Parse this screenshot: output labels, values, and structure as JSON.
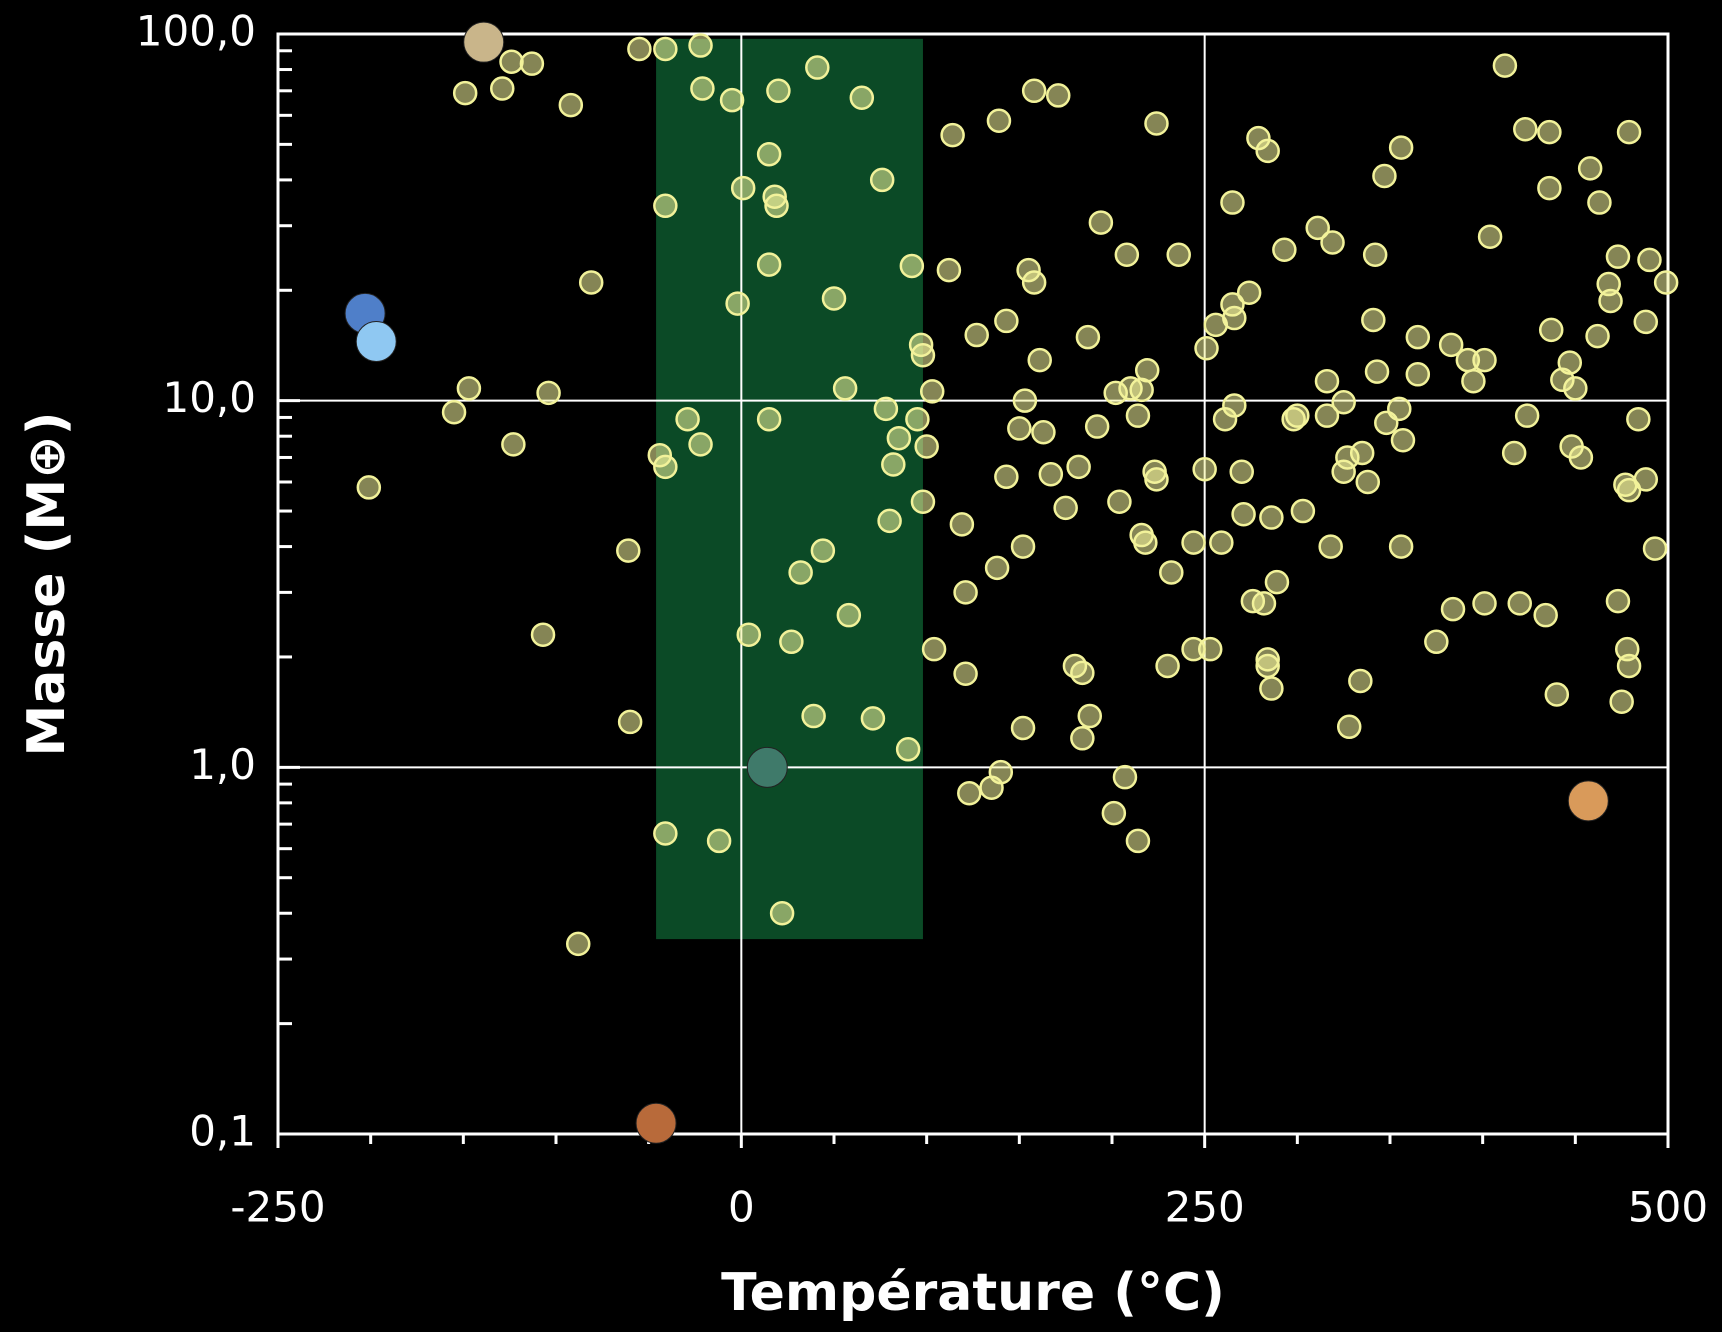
{
  "chart_data": {
    "type": "scatter",
    "x_label": "Température (°C)",
    "y_label": "Masse (M⊕)",
    "log_y": true,
    "grid": true,
    "xlim": [
      -250,
      500
    ],
    "ylim": [
      0.1,
      100
    ],
    "xticks": [
      -250,
      0,
      250,
      500
    ],
    "xminorticks": [
      -200,
      -150,
      -100,
      -50,
      50,
      100,
      150,
      200,
      300,
      350,
      400,
      450
    ],
    "yticks": [
      {
        "value": 0.1,
        "label": "0,1"
      },
      {
        "value": 1,
        "label": "1,0"
      },
      {
        "value": 10,
        "label": "10,0"
      },
      {
        "value": 100,
        "label": "100,0"
      }
    ],
    "yminorticks": [
      0.2,
      0.3,
      0.4,
      0.5,
      0.6,
      0.7,
      0.8,
      0.9,
      2,
      3,
      4,
      5,
      6,
      7,
      8,
      9,
      20,
      30,
      40,
      50,
      60,
      70,
      80,
      90
    ],
    "highlight_region": {
      "xlim": [
        -46,
        98
      ],
      "ylim": [
        0.34,
        97
      ],
      "color": "#0b4a26"
    },
    "series": [
      {
        "color": "#f2f29a",
        "x": [
          -149,
          -124,
          -113,
          -129,
          -92,
          -55,
          -41,
          -22,
          -81,
          -147,
          -155,
          -123,
          -104,
          -201,
          -61,
          -107,
          -60,
          -88,
          -21,
          -5,
          20,
          41,
          65,
          15,
          1,
          18,
          19,
          -41,
          76,
          15,
          -2,
          50,
          92,
          97,
          98,
          56,
          78,
          95,
          15,
          -29,
          -22,
          -44,
          -41,
          85,
          82,
          100,
          98,
          80,
          44,
          32,
          58,
          4,
          27,
          39,
          71,
          90,
          -41,
          -12,
          22,
          103,
          104,
          114,
          112,
          119,
          121,
          121,
          123,
          127,
          135,
          139,
          138,
          140,
          143,
          143,
          150,
          152,
          152,
          153,
          155,
          158,
          158,
          161,
          163,
          167,
          171,
          175,
          180,
          182,
          184,
          184,
          187,
          188,
          192,
          194,
          201,
          202,
          204,
          207,
          208,
          210,
          214,
          216,
          214,
          216,
          218,
          219,
          224,
          223,
          224,
          232,
          236,
          230,
          244,
          244,
          250,
          251,
          253,
          259,
          256,
          261,
          266,
          265,
          265,
          266,
          270,
          271,
          274,
          276,
          279,
          282,
          284,
          284,
          284,
          286,
          286,
          289,
          293,
          298,
          300,
          303,
          311,
          316,
          316,
          318,
          319,
          325,
          325,
          327,
          328,
          334,
          335,
          338,
          342,
          341,
          343,
          348,
          347,
          355,
          356,
          357,
          356,
          365,
          365,
          375,
          383,
          384,
          392,
          395,
          401,
          401,
          404,
          412,
          417,
          423,
          420,
          424,
          434,
          436,
          436,
          437,
          440,
          443,
          448,
          447,
          450,
          453,
          458,
          462,
          463,
          468,
          469,
          473,
          473,
          475,
          477,
          479,
          479,
          478,
          479,
          484,
          488,
          488,
          490,
          493,
          499
        ],
        "y": [
          69,
          84,
          83,
          71,
          64,
          91,
          91,
          93,
          21,
          10.8,
          9.3,
          7.6,
          10.5,
          5.8,
          3.9,
          2.3,
          1.33,
          0.33,
          71,
          66,
          70,
          81,
          67,
          47,
          38,
          36,
          34,
          34,
          40,
          23.5,
          18.4,
          19,
          23.3,
          14.2,
          13.3,
          10.8,
          9.5,
          8.9,
          8.9,
          8.9,
          7.6,
          7.1,
          6.6,
          7.9,
          6.7,
          7.5,
          5.3,
          4.7,
          3.9,
          3.4,
          2.6,
          2.3,
          2.2,
          1.38,
          1.36,
          1.12,
          0.66,
          0.63,
          0.4,
          10.6,
          2.1,
          53,
          22.7,
          4.6,
          3,
          1.8,
          0.85,
          15.1,
          0.88,
          58,
          3.5,
          0.97,
          16.5,
          6.2,
          8.4,
          4,
          1.28,
          10,
          22.7,
          21,
          70,
          12.9,
          8.2,
          6.3,
          68,
          5.1,
          1.89,
          6.6,
          1.81,
          1.2,
          14.9,
          1.38,
          8.5,
          30.6,
          0.75,
          10.5,
          5.3,
          0.94,
          25,
          10.8,
          9.1,
          10.7,
          0.63,
          4.3,
          4.1,
          12.1,
          57,
          6.4,
          6.1,
          3.4,
          25,
          1.89,
          4.1,
          2.1,
          6.5,
          13.9,
          2.1,
          4.1,
          16.1,
          8.9,
          9.7,
          34.7,
          18.3,
          16.8,
          6.4,
          4.9,
          19.7,
          2.84,
          52,
          2.8,
          48,
          1.97,
          1.89,
          1.64,
          4.8,
          3.2,
          25.8,
          8.9,
          9.1,
          5,
          29.6,
          11.3,
          9.1,
          4,
          27,
          9.9,
          6.4,
          7,
          1.29,
          1.72,
          7.2,
          6,
          25,
          16.6,
          12,
          8.7,
          41,
          9.5,
          49,
          7.8,
          4,
          14.9,
          11.8,
          2.2,
          14.2,
          2.7,
          12.9,
          11.3,
          12.9,
          2.8,
          28,
          82,
          7.2,
          55,
          2.8,
          9.1,
          2.6,
          54,
          38,
          15.6,
          1.58,
          11.4,
          7.5,
          12.7,
          10.8,
          7,
          43,
          15,
          34.7,
          20.8,
          18.7,
          24.7,
          2.84,
          1.51,
          5.9,
          54,
          5.7,
          2.1,
          1.89,
          8.9,
          16.4,
          6.1,
          24.2,
          3.95,
          21
        ]
      },
      {
        "colors": [
          "#c9b58a",
          "#4f7fc9",
          "#8fc8f2",
          "#3f7a6a",
          "#d99a5a",
          "#b86a3a"
        ],
        "x": [
          -139,
          -203,
          -197,
          14,
          457,
          -46
        ],
        "y": [
          95,
          17.3,
          14.5,
          1,
          0.81,
          0.107
        ]
      }
    ]
  }
}
